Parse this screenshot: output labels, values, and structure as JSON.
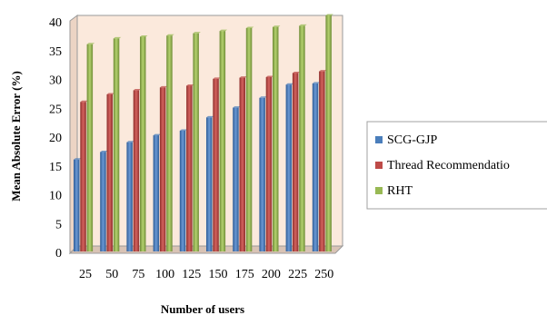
{
  "chart_data": {
    "type": "bar",
    "title": "",
    "xlabel": "Number of users",
    "ylabel": "Mean Absolute Error (%)",
    "ylim": [
      0,
      40
    ],
    "yticks": [
      "0",
      "5",
      "10",
      "15",
      "20",
      "25",
      "30",
      "35",
      "40"
    ],
    "categories": [
      "25",
      "50",
      "75",
      "100",
      "125",
      "150",
      "175",
      "200",
      "225",
      "250"
    ],
    "grid": false,
    "legend_position": "right",
    "series": [
      {
        "name": "SCG-GJP",
        "color": "#4a7ebb",
        "values": [
          15,
          16.3,
          18,
          19.2,
          20,
          22.3,
          24,
          25.7,
          28,
          28.2
        ]
      },
      {
        "name": "Thread Recommendatio",
        "color": "#be4b48",
        "values": [
          25,
          26.3,
          27,
          27.5,
          27.8,
          29,
          29.2,
          29.3,
          30,
          30.3
        ]
      },
      {
        "name": "RHT",
        "color": "#98b954",
        "values": [
          35,
          36,
          36.3,
          36.5,
          36.9,
          37.3,
          37.8,
          38,
          38.2,
          40
        ]
      }
    ],
    "plot_background": "#fbe9dc"
  }
}
